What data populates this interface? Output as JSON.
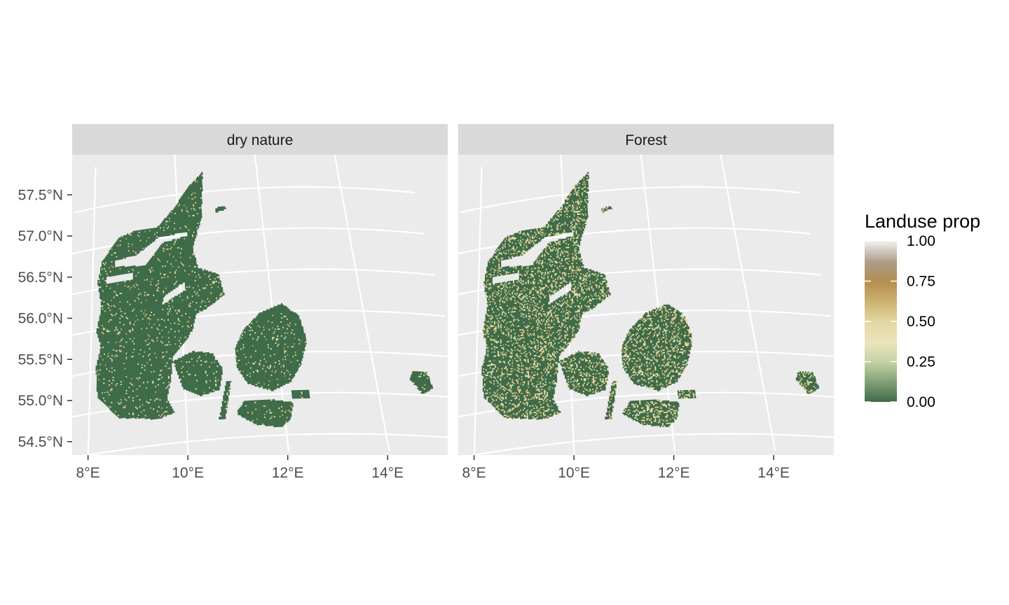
{
  "chart_data": {
    "type": "heatmap",
    "subtype": "faceted raster map (projected graticule)",
    "facets": [
      {
        "name": "dry nature",
        "fine_value_share": 0.06
      },
      {
        "name": "Forest",
        "fine_value_share": 0.24
      }
    ],
    "x_axis": {
      "tick_labels": [
        "8°E",
        "10°E",
        "12°E",
        "14°E"
      ],
      "ticks": [
        8,
        10,
        12,
        14
      ]
    },
    "y_axis": {
      "tick_labels": [
        "54.5°N",
        "55.0°N",
        "55.5°N",
        "56.0°N",
        "56.5°N",
        "57.0°N",
        "57.5°N"
      ],
      "ticks": [
        54.5,
        55.0,
        55.5,
        56.0,
        56.5,
        57.0,
        57.5
      ]
    },
    "xlim": [
      7.8,
      15.4
    ],
    "ylim": [
      54.4,
      57.9
    ],
    "legend": {
      "title": "Landuse prop",
      "position": "right",
      "labels": [
        "1.00",
        "0.75",
        "0.50",
        "0.25",
        "0.00"
      ],
      "breaks": [
        1.0,
        0.75,
        0.5,
        0.25,
        0.0
      ],
      "range": [
        0,
        1
      ],
      "colors": [
        {
          "value": 0.0,
          "color": "#3e6b48"
        },
        {
          "value": 0.12,
          "color": "#7f9f76"
        },
        {
          "value": 0.25,
          "color": "#c6d3a7"
        },
        {
          "value": 0.37,
          "color": "#ebe5bb"
        },
        {
          "value": 0.5,
          "color": "#e3d7a1"
        },
        {
          "value": 0.62,
          "color": "#cdb270"
        },
        {
          "value": 0.75,
          "color": "#b28d4f"
        },
        {
          "value": 0.87,
          "color": "#ad9d89"
        },
        {
          "value": 1.0,
          "color": "#f1f1f0"
        }
      ]
    },
    "grid": true,
    "panel_background": "#ebebeb",
    "strip_background": "#d9d9d9"
  }
}
